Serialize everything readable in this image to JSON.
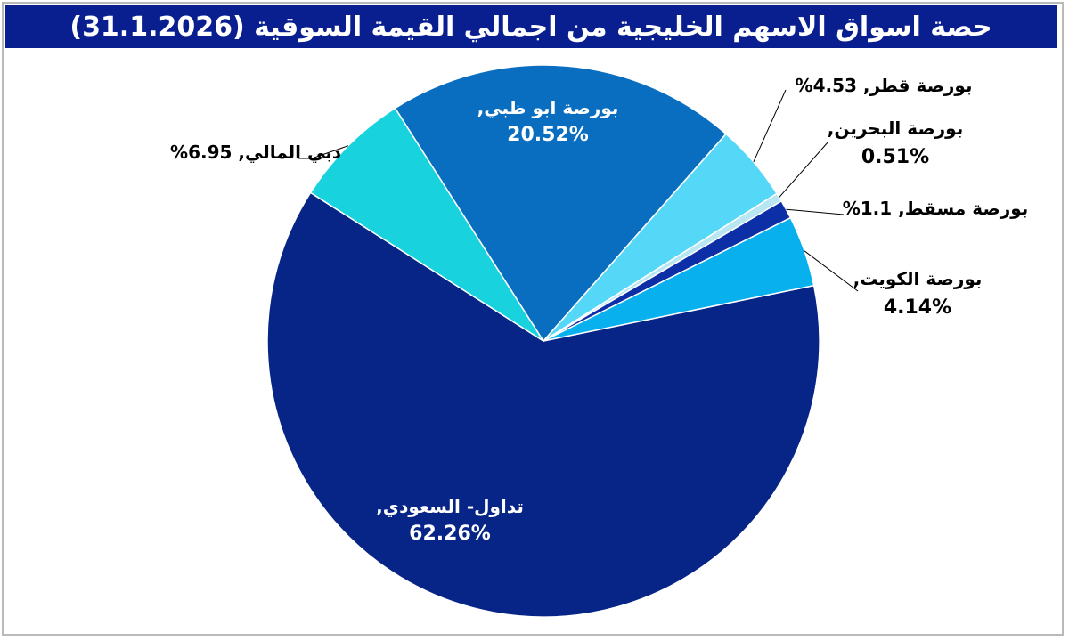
{
  "header": {
    "title": "حصة اسواق الاسهم الخليجية من اجمالي القيمة السوقية (31.1.2026)"
  },
  "chart_data": {
    "type": "pie",
    "title": "حصة اسواق الاسهم الخليجية من اجمالي القيمة السوقية (31.1.2026)",
    "slices": [
      {
        "name": "تداول- السعودي",
        "value": 62.26,
        "color": "#072586",
        "label": "تداول- السعودي,",
        "pct": "62.26%"
      },
      {
        "name": "دبي المالي",
        "value": 6.95,
        "color": "#18d2de",
        "label": "دبي المالي,",
        "pct": "6.95%"
      },
      {
        "name": "بورصة ابو ظبي",
        "value": 20.52,
        "color": "#0a6ec0",
        "label": "بورصة ابو ظبي,",
        "pct": "20.52%"
      },
      {
        "name": "بورصة قطر",
        "value": 4.53,
        "color": "#55d7f7",
        "label": "بورصة قطر,",
        "pct": "4.53%"
      },
      {
        "name": "بورصة البحرين",
        "value": 0.51,
        "color": "#b8e6f2",
        "label": "بورصة البحرين,",
        "pct": "0.51%"
      },
      {
        "name": "بورصة مسقط",
        "value": 1.1,
        "color": "#0c2fa8",
        "label": "بورصة مسقط,",
        "pct": "1.1%"
      },
      {
        "name": "بورصة الكويت",
        "value": 4.14,
        "color": "#08b0ee",
        "label": "بورصة الكويت,",
        "pct": "4.14%"
      }
    ],
    "legend": "none"
  }
}
